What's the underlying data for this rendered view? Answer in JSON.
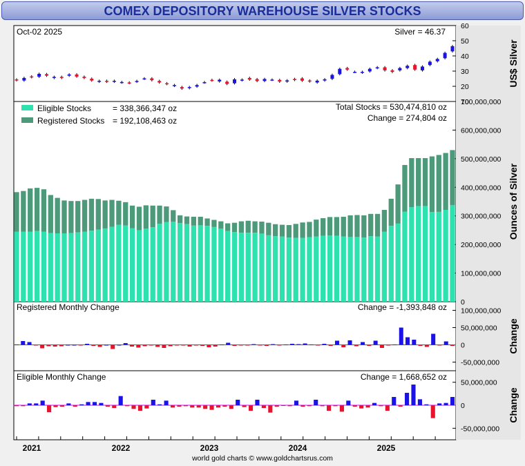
{
  "title": "COMEX DEPOSITORY WAREHOUSE SILVER STOCKS",
  "footer": "world gold charts © www.goldchartsrus.com",
  "x_axis": {
    "years": [
      "2021",
      "2022",
      "2023",
      "2024",
      "2025"
    ]
  },
  "colors": {
    "eligible": "#2ee2b0",
    "registered": "#4d9a7a",
    "up": "#1a12e6",
    "down": "#e8132c",
    "zero_line": "#e000e0"
  },
  "chart_data": [
    {
      "type": "candlestick",
      "name": "silver-price",
      "date_label": "Oct-02  2025",
      "price_label": "Silver = 46.37",
      "ylabel": "US$ Silver",
      "ylim": [
        10,
        60
      ],
      "yticks": [
        "10",
        "20",
        "30",
        "40",
        "50",
        "60"
      ],
      "values": [
        [
          24.5,
          24
        ],
        [
          23.8,
          25.5
        ],
        [
          26.5,
          26
        ],
        [
          26.3,
          28.2
        ],
        [
          28,
          27
        ],
        [
          25.5,
          26.2
        ],
        [
          26.2,
          25.5
        ],
        [
          27,
          27.8
        ],
        [
          27.8,
          26.4
        ],
        [
          26.3,
          25.5
        ],
        [
          25,
          23.8
        ],
        [
          23,
          23.6
        ],
        [
          23.6,
          23
        ],
        [
          23,
          23.6
        ],
        [
          22.5,
          22.8
        ],
        [
          22.5,
          22.2
        ],
        [
          23,
          23.5
        ],
        [
          25,
          25.2
        ],
        [
          25.2,
          24
        ],
        [
          23.5,
          22.5
        ],
        [
          22,
          21.5
        ],
        [
          20.3,
          20.8
        ],
        [
          19.5,
          18.5
        ],
        [
          18.8,
          19.5
        ],
        [
          19.8,
          20.8
        ],
        [
          22.5,
          22.7
        ],
        [
          24.2,
          23.8
        ],
        [
          23.2,
          24.3
        ],
        [
          23,
          21.6
        ],
        [
          22,
          24.6
        ],
        [
          24,
          24.4
        ],
        [
          25.5,
          24.4
        ],
        [
          24.7,
          23.5
        ],
        [
          23.5,
          24.8
        ],
        [
          24.3,
          24.4
        ],
        [
          24.2,
          23.1
        ],
        [
          23.1,
          23.9
        ],
        [
          24.8,
          24.2
        ],
        [
          25.2,
          23.7
        ],
        [
          23.8,
          23.2
        ],
        [
          22.5,
          23.7
        ],
        [
          23.8,
          24.6
        ],
        [
          24.9,
          27.5
        ],
        [
          28,
          31.5
        ],
        [
          32,
          31
        ],
        [
          29.5,
          29.5
        ],
        [
          29,
          29.5
        ],
        [
          29.8,
          31.5
        ],
        [
          32,
          32.5
        ],
        [
          32.5,
          30.5
        ],
        [
          30.5,
          29.5
        ],
        [
          30.5,
          32
        ],
        [
          32,
          33.5
        ],
        [
          34,
          31
        ],
        [
          30.5,
          33
        ],
        [
          34,
          36.2
        ],
        [
          36.5,
          38
        ],
        [
          38.5,
          42
        ],
        [
          43,
          46.4
        ]
      ]
    },
    {
      "type": "stacked-bar",
      "name": "warehouse-stocks",
      "legend": [
        {
          "name": "Eligible Stocks",
          "value": "= 338,366,347 oz"
        },
        {
          "name": "Registered Stocks",
          "value": "= 192,108,463 oz"
        }
      ],
      "total_label": "Total Stocks = 530,474,810 oz",
      "change_label": "Change = 274,804 oz",
      "ylabel": "Ounces of Silver",
      "ylim": [
        0,
        700000000
      ],
      "yticks": [
        "0",
        "100,000,000",
        "200,000,000",
        "300,000,000",
        "400,000,000",
        "500,000,000",
        "600,000,000",
        "700,000,000"
      ],
      "total": [
        383,
        387,
        396,
        398,
        393,
        373,
        363,
        354,
        352,
        352,
        356,
        360,
        359,
        354,
        356,
        353,
        348,
        336,
        332,
        337,
        336,
        336,
        333,
        320,
        302,
        298,
        297,
        297,
        291,
        286,
        281,
        274,
        276,
        281,
        283,
        281,
        280,
        276,
        271,
        269,
        268,
        272,
        277,
        279,
        287,
        292,
        296,
        296,
        297,
        302,
        303,
        302,
        307,
        307,
        321,
        360,
        410,
        478,
        502,
        502,
        502,
        508,
        513,
        520,
        530
      ],
      "eligible": [
        245,
        245,
        245,
        247,
        245,
        240,
        239,
        239,
        240,
        242,
        245,
        248,
        252,
        256,
        262,
        269,
        266,
        257,
        250,
        255,
        260,
        272,
        278,
        280,
        275,
        271,
        266,
        267,
        265,
        261,
        255,
        247,
        243,
        241,
        241,
        241,
        238,
        232,
        229,
        228,
        224,
        223,
        223,
        225,
        228,
        230,
        231,
        230,
        228,
        226,
        226,
        224,
        229,
        228,
        245,
        265,
        273,
        315,
        330,
        334,
        334,
        313,
        314,
        321,
        338
      ]
    },
    {
      "type": "bar",
      "name": "registered-monthly-change",
      "title": "Registered Monthly Change",
      "change_label": "Change = -1,393,848 oz",
      "ylim": [
        -75000000,
        125000000
      ],
      "yticks": [
        "-50,000,000",
        "0",
        "50,000,000",
        "100,000,000"
      ],
      "values": [
        1,
        11,
        8,
        -1,
        -10,
        -4,
        -5,
        -4,
        0,
        0,
        -2,
        3,
        -3,
        -6,
        0,
        -12,
        0,
        5,
        -5,
        -8,
        -4,
        -2,
        -6,
        -9,
        -4,
        -2,
        -1,
        -5,
        -2,
        -3,
        -7,
        -5,
        1,
        6,
        -3,
        -1,
        -2,
        2,
        -2,
        -3,
        2,
        -1,
        1,
        3,
        2,
        4,
        1,
        -1,
        3,
        -3,
        12,
        -7,
        13,
        -4,
        8,
        -3,
        12,
        -9,
        -1,
        1,
        50,
        22,
        15,
        -3,
        -6,
        32,
        -1,
        10,
        -3
      ]
    },
    {
      "type": "bar",
      "name": "eligible-monthly-change",
      "title": "Eligible Monthly Change",
      "change_label": "Change = 1,668,652 oz",
      "ylim": [
        -75000000,
        75000000
      ],
      "yticks": [
        "-50,000,000",
        "0",
        "50,000,000"
      ],
      "values": [
        -2,
        -2,
        4,
        4,
        10,
        -15,
        -4,
        -3,
        4,
        -3,
        2,
        7,
        7,
        5,
        -3,
        -6,
        20,
        -2,
        -8,
        -12,
        -7,
        12,
        2,
        10,
        -5,
        -3,
        -2,
        -5,
        -5,
        -8,
        -10,
        -5,
        -3,
        -8,
        12,
        -4,
        -12,
        12,
        -6,
        -16,
        -3,
        -1,
        -2,
        10,
        -3,
        -2,
        12,
        -2,
        -12,
        -2,
        -14,
        10,
        -3,
        -7,
        -5,
        5,
        -2,
        -12,
        18,
        -3,
        27,
        45,
        13,
        2,
        -28,
        4,
        5,
        18
      ]
    }
  ]
}
